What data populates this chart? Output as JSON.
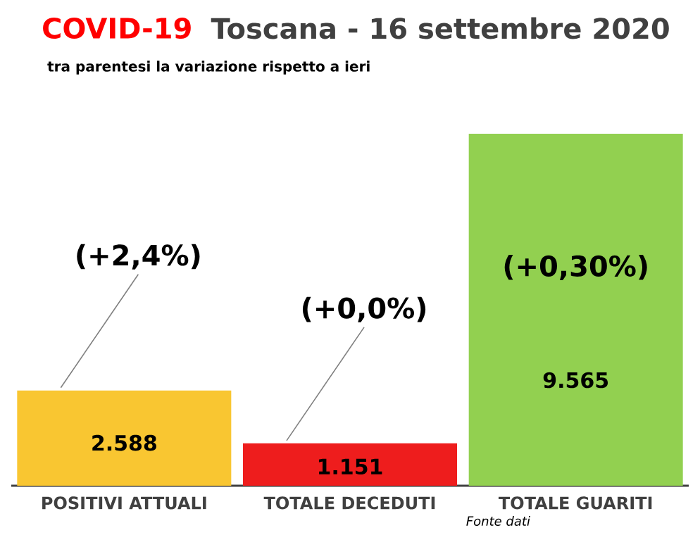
{
  "chart_data": {
    "type": "bar",
    "title": "COVID-19",
    "subtitle": "Toscana - 16 settembre 2020",
    "categories": [
      "POSITIVI ATTUALI",
      "TOTALE DECEDUTI",
      "TOTALE GUARITI"
    ],
    "values": [
      2588,
      1151,
      9565
    ],
    "value_labels": [
      "2.588",
      "1.151",
      "9.565"
    ],
    "colors": [
      "#f9c631",
      "#ee1d1d",
      "#92d050"
    ],
    "annotations": [
      "tra parentesi la variazione rispetto a ieri",
      "(+2,4%)",
      "(+0,0%)",
      "(+0,30%)",
      "Fonte dati"
    ]
  }
}
